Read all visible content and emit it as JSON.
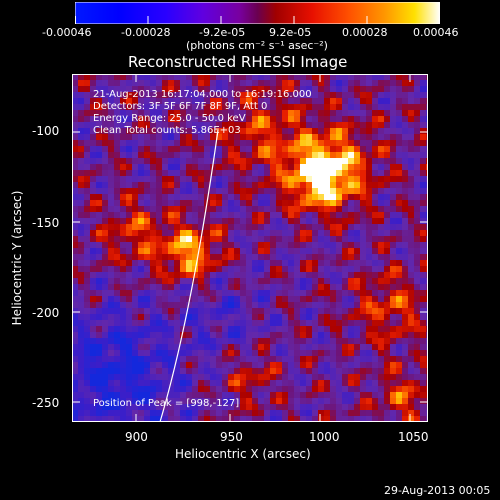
{
  "colorbar": {
    "tick_labels": [
      "-0.00046",
      "-0.00028",
      "-9.2e-05",
      "9.2e-05",
      "0.00028",
      "0.00046"
    ],
    "units_label": "(photons cm⁻² s⁻¹ asec⁻²)"
  },
  "plot": {
    "title": "Reconstructed RHESSI Image",
    "info_lines": [
      "21-Aug-2013 16:17:04.000 to 16:19:16.000",
      "Detectors: 3F 5F 6F 7F 8F 9F, Att 0",
      "Energy Range: 25.0 - 50.0 keV",
      "Clean     Total counts: 5.86E+03"
    ],
    "peak_label": "Position of Peak = [998,-127]",
    "xlabel": "Heliocentric X (arcsec)",
    "ylabel": "Heliocentric Y (arcsec)",
    "x_ticks": [
      "900",
      "950",
      "1000",
      "1050"
    ],
    "y_ticks": [
      "-100",
      "-150",
      "-200",
      "-250"
    ],
    "timestamp": "29-Aug-2013 00:05"
  },
  "colors": {
    "background": "#000000",
    "text": "#ffffff",
    "colormap": [
      "#0000ff",
      "#3a00ff",
      "#6a00d8",
      "#8a00a8",
      "#b00000",
      "#ff2800",
      "#ff8a00",
      "#ffd000",
      "#ffffff"
    ]
  }
}
